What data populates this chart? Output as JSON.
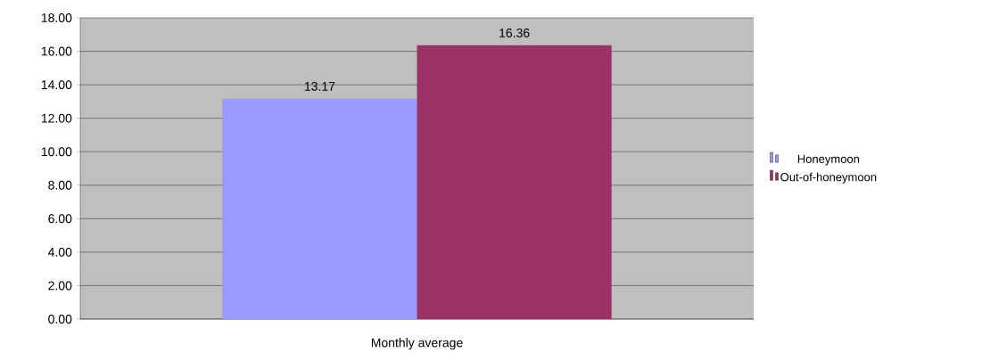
{
  "chart_data": {
    "type": "bar",
    "categories": [
      "Monthly average"
    ],
    "series": [
      {
        "name": "Honeymoon",
        "color": "#9999ff",
        "values": [
          13.17
        ],
        "value_labels": [
          "13.17"
        ]
      },
      {
        "name": "Out-of-honeymoon",
        "color": "#993366",
        "values": [
          16.36
        ],
        "value_labels": [
          "16.36"
        ]
      }
    ],
    "ylim": [
      0,
      18
    ],
    "yticks": [
      {
        "value": 0,
        "label": "0.00"
      },
      {
        "value": 2,
        "label": "2.00"
      },
      {
        "value": 4,
        "label": "4.00"
      },
      {
        "value": 6,
        "label": "6.00"
      },
      {
        "value": 8,
        "label": "8.00"
      },
      {
        "value": 10,
        "label": "10.00"
      },
      {
        "value": 12,
        "label": "12.00"
      },
      {
        "value": 14,
        "label": "14.00"
      },
      {
        "value": 16,
        "label": "16.00"
      },
      {
        "value": 18,
        "label": "18.00"
      }
    ],
    "grid": "y",
    "legend": "right"
  }
}
